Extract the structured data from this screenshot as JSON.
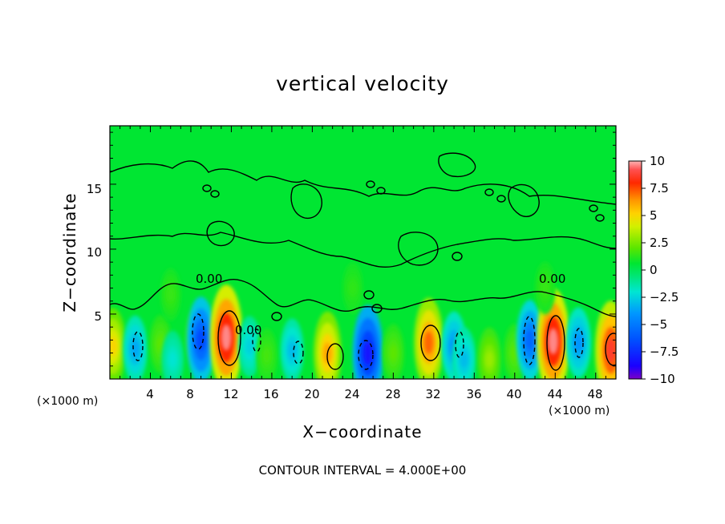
{
  "chart_data": {
    "type": "heatmap",
    "title": "vertical velocity",
    "xlabel": "X−coordinate",
    "ylabel": "Z−coordinate",
    "x_unit_left": "(×1000 m)",
    "x_unit_right": "(×1000 m)",
    "xlim": [
      0,
      50
    ],
    "ylim": [
      0,
      19.5
    ],
    "x_ticks": [
      "4",
      "8",
      "12",
      "16",
      "20",
      "24",
      "28",
      "32",
      "36",
      "40",
      "44",
      "48"
    ],
    "y_ticks": [
      "5",
      "10",
      "15"
    ],
    "colorbar": {
      "min": -10,
      "max": 10,
      "labels": [
        "10",
        "7.5",
        "5",
        "2.5",
        "0",
        "−2.5",
        "−5",
        "−7.5",
        "−10"
      ]
    },
    "contour_interval_text": "CONTOUR INTERVAL = 4.000E+00",
    "contour_labels": [
      "0.00",
      "0.00",
      "0.00"
    ],
    "features": [
      {
        "x": 0.3,
        "z": 2.5,
        "value": 5.0
      },
      {
        "x": 2.5,
        "z": 2.3,
        "value": -3.5
      },
      {
        "x": 5.0,
        "z": 2.7,
        "value": 2.0
      },
      {
        "x": 6.2,
        "z": 1.5,
        "value": -2.0
      },
      {
        "x": 8.6,
        "z": 3.2,
        "value": 2.5
      },
      {
        "x": 9.0,
        "z": 3.0,
        "value": -6.5
      },
      {
        "x": 11.5,
        "z": 3.2,
        "value": 9.5
      },
      {
        "x": 13.8,
        "z": 2.5,
        "value": -2.5
      },
      {
        "x": 15.5,
        "z": 1.8,
        "value": 1.5
      },
      {
        "x": 18.0,
        "z": 2.2,
        "value": -3.0
      },
      {
        "x": 21.5,
        "z": 2.0,
        "value": 6.0
      },
      {
        "x": 25.5,
        "z": 2.0,
        "value": -8.0
      },
      {
        "x": 28.0,
        "z": 2.0,
        "value": 2.0
      },
      {
        "x": 31.5,
        "z": 2.8,
        "value": 7.0
      },
      {
        "x": 34.0,
        "z": 2.5,
        "value": -4.0
      },
      {
        "x": 35.0,
        "z": 1.5,
        "value": -3.0
      },
      {
        "x": 37.5,
        "z": 1.5,
        "value": 3.0
      },
      {
        "x": 40.0,
        "z": 2.0,
        "value": 2.0
      },
      {
        "x": 41.5,
        "z": 3.0,
        "value": -5.5
      },
      {
        "x": 43.8,
        "z": 2.9,
        "value": 9.5
      },
      {
        "x": 46.3,
        "z": 2.8,
        "value": -4.0
      },
      {
        "x": 49.5,
        "z": 2.2,
        "value": 8.5
      },
      {
        "x": 6.0,
        "z": 6.5,
        "value": 1.2
      },
      {
        "x": 24.0,
        "z": 7.0,
        "value": 1.0
      },
      {
        "x": 43.0,
        "z": 7.0,
        "value": 1.2
      }
    ]
  }
}
